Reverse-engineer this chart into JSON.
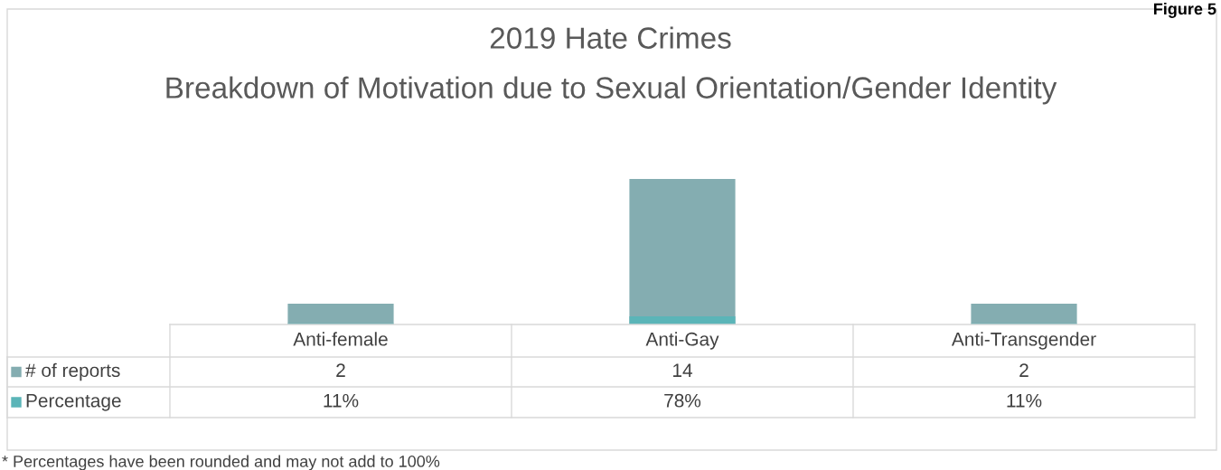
{
  "chart_data": {
    "type": "bar",
    "title": "2019 Hate Crimes",
    "subtitle": "Breakdown of Motivation due to Sexual Orientation/Gender Identity",
    "categories": [
      "Anti-female",
      "Anti-Gay",
      "Anti-Transgender"
    ],
    "series": [
      {
        "name": "# of reports",
        "color": "#84adb1",
        "values": [
          2,
          14,
          2
        ],
        "value_labels": [
          "2",
          "14",
          "2"
        ]
      },
      {
        "name": "Percentage",
        "color": "#5bb5b8",
        "values": [
          0.11,
          0.78,
          0.11
        ],
        "value_labels": [
          "11%",
          "78%",
          "11%"
        ]
      }
    ],
    "legend": "bottom left",
    "annotations": [
      "Figure 5",
      "* Percentages have been rounded and may not add to 100%"
    ]
  }
}
